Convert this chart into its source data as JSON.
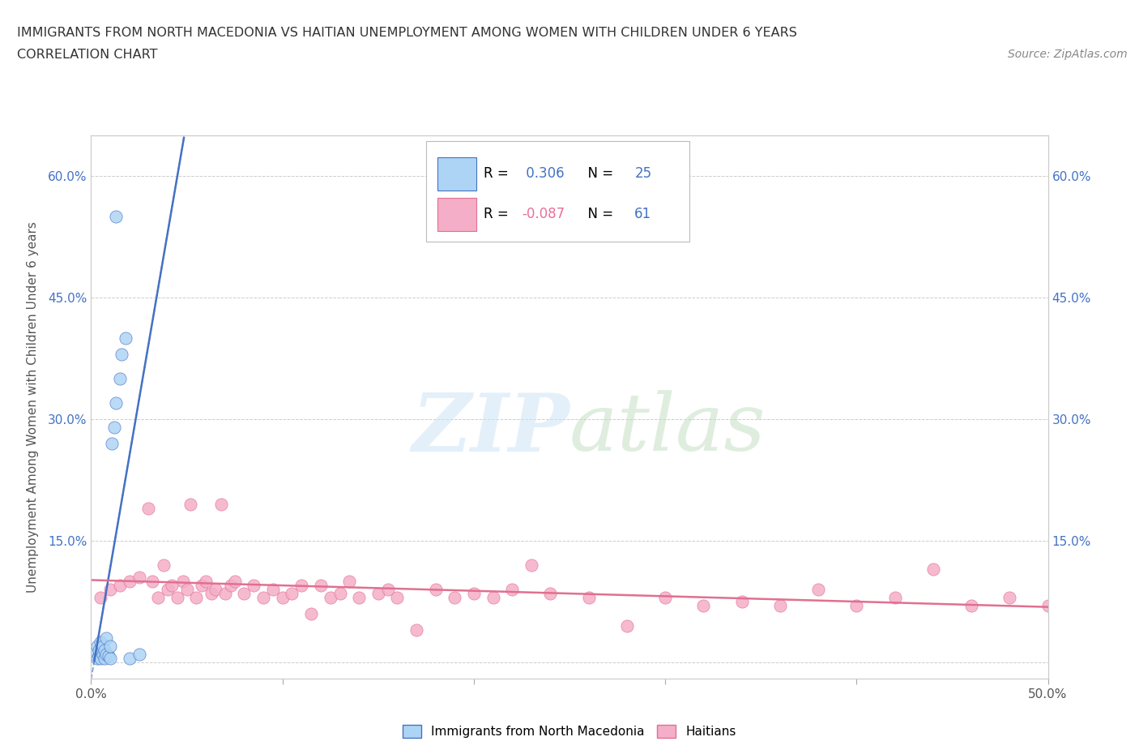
{
  "title_line1": "IMMIGRANTS FROM NORTH MACEDONIA VS HAITIAN UNEMPLOYMENT AMONG WOMEN WITH CHILDREN UNDER 6 YEARS",
  "title_line2": "CORRELATION CHART",
  "source_text": "Source: ZipAtlas.com",
  "ylabel": "Unemployment Among Women with Children Under 6 years",
  "xlim": [
    0.0,
    0.5
  ],
  "ylim": [
    -0.02,
    0.65
  ],
  "R_macedonian": 0.306,
  "N_macedonian": 25,
  "R_haitian": -0.087,
  "N_haitian": 61,
  "color_macedonian": "#aed4f5",
  "color_haitian": "#f5aec8",
  "line_color_macedonian": "#4472c4",
  "line_color_haitian": "#e07090",
  "macedonian_x": [
    0.002,
    0.003,
    0.003,
    0.004,
    0.004,
    0.005,
    0.005,
    0.006,
    0.006,
    0.007,
    0.007,
    0.008,
    0.008,
    0.009,
    0.01,
    0.01,
    0.011,
    0.012,
    0.013,
    0.015,
    0.016,
    0.018,
    0.02,
    0.025,
    0.013
  ],
  "macedonian_y": [
    0.01,
    0.005,
    0.02,
    0.008,
    0.015,
    0.005,
    0.025,
    0.01,
    0.02,
    0.005,
    0.015,
    0.01,
    0.03,
    0.008,
    0.005,
    0.02,
    0.27,
    0.29,
    0.32,
    0.35,
    0.38,
    0.4,
    0.005,
    0.01,
    0.55
  ],
  "haitian_x": [
    0.005,
    0.01,
    0.015,
    0.02,
    0.025,
    0.03,
    0.032,
    0.035,
    0.038,
    0.04,
    0.042,
    0.045,
    0.048,
    0.05,
    0.052,
    0.055,
    0.058,
    0.06,
    0.063,
    0.065,
    0.068,
    0.07,
    0.073,
    0.075,
    0.08,
    0.085,
    0.09,
    0.095,
    0.1,
    0.105,
    0.11,
    0.115,
    0.12,
    0.125,
    0.13,
    0.135,
    0.14,
    0.15,
    0.155,
    0.16,
    0.17,
    0.18,
    0.19,
    0.2,
    0.21,
    0.22,
    0.23,
    0.24,
    0.26,
    0.28,
    0.3,
    0.32,
    0.34,
    0.36,
    0.38,
    0.4,
    0.42,
    0.44,
    0.46,
    0.48,
    0.5
  ],
  "haitian_y": [
    0.08,
    0.09,
    0.095,
    0.1,
    0.105,
    0.19,
    0.1,
    0.08,
    0.12,
    0.09,
    0.095,
    0.08,
    0.1,
    0.09,
    0.195,
    0.08,
    0.095,
    0.1,
    0.085,
    0.09,
    0.195,
    0.085,
    0.095,
    0.1,
    0.085,
    0.095,
    0.08,
    0.09,
    0.08,
    0.085,
    0.095,
    0.06,
    0.095,
    0.08,
    0.085,
    0.1,
    0.08,
    0.085,
    0.09,
    0.08,
    0.04,
    0.09,
    0.08,
    0.085,
    0.08,
    0.09,
    0.12,
    0.085,
    0.08,
    0.045,
    0.08,
    0.07,
    0.075,
    0.07,
    0.09,
    0.07,
    0.08,
    0.115,
    0.07,
    0.08,
    0.07
  ]
}
